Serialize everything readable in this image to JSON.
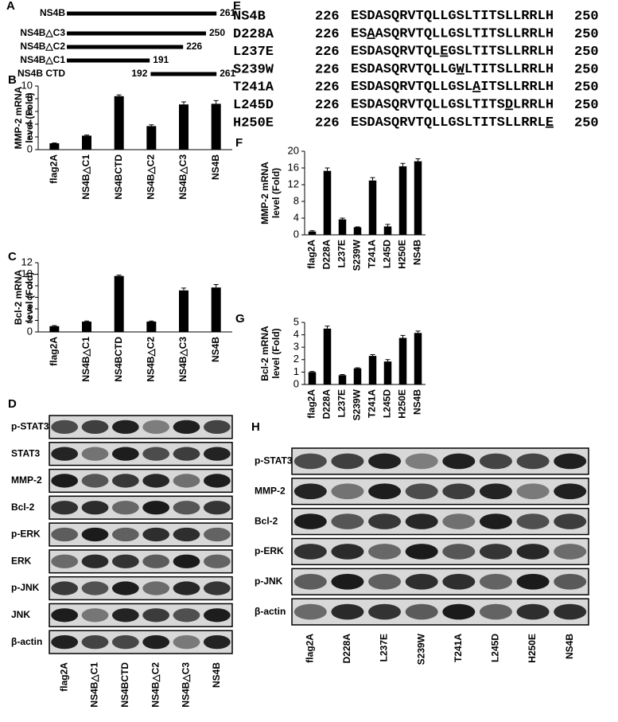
{
  "panel_a": {
    "letter": "A",
    "constructs": [
      {
        "name": "NS4B",
        "end": 261
      },
      {
        "name": "NS4B△C3",
        "end": 250
      },
      {
        "name": "NS4B△C2",
        "end": 226
      },
      {
        "name": "NS4B△C1",
        "end": 191
      },
      {
        "name": "NS4B CTD",
        "start": 192,
        "end": 261
      }
    ]
  },
  "panel_e": {
    "letter": "E",
    "rows": [
      {
        "name": "NS4B",
        "start": 226,
        "seq": [
          "ESDASQRVTQLLGSLTITSLLRRLH"
        ],
        "end": 250
      },
      {
        "name": "D228A",
        "start": 226,
        "seq": [
          "ES",
          "A",
          "ASQRVTQLLGSLTITSLLRRLH"
        ],
        "end": 250
      },
      {
        "name": "L237E",
        "start": 226,
        "seq": [
          "ESDASQRVTQL",
          "E",
          "GSLTITSLLRRLH"
        ],
        "end": 250
      },
      {
        "name": "S239W",
        "start": 226,
        "seq": [
          "ESDASQRVTQLLG",
          "W",
          "LTITSLLRRLH"
        ],
        "end": 250
      },
      {
        "name": "T241A",
        "start": 226,
        "seq": [
          "ESDASQRVTQLLGSL",
          "A",
          "ITSLLRRLH"
        ],
        "end": 250
      },
      {
        "name": "L245D",
        "start": 226,
        "seq": [
          "ESDASQRVTQLLGSLTITS",
          "D",
          "LRRLH"
        ],
        "end": 250
      },
      {
        "name": "H250E",
        "start": 226,
        "seq": [
          "ESDASQRVTQLLGSLTITSLLRRL",
          "E"
        ],
        "end": 250
      }
    ]
  },
  "chart_data": [
    {
      "type": "bar",
      "panel": "B",
      "ylabel": [
        "MMP-2 mRNA",
        "level (Fold)"
      ],
      "categories": [
        "flag2A",
        "NS4B△C1",
        "NS4BCTD",
        "NS4B△C2",
        "NS4B△C3",
        "NS4B"
      ],
      "values": [
        1,
        2.2,
        8.4,
        3.7,
        7.1,
        7.2
      ],
      "errors": [
        0.05,
        0.1,
        0.2,
        0.2,
        0.4,
        0.5
      ],
      "ylim": [
        0,
        10
      ],
      "yticks": [
        0,
        2,
        4,
        6,
        8,
        10
      ],
      "color": "#000000"
    },
    {
      "type": "bar",
      "panel": "C",
      "ylabel": [
        "Bcl-2 mRNA",
        "level (Fold)"
      ],
      "categories": [
        "flag2A",
        "NS4B△C1",
        "NS4BCTD",
        "NS4B△C2",
        "NS4B△C3",
        "NS4B"
      ],
      "values": [
        1,
        1.8,
        9.7,
        1.8,
        7.2,
        7.7
      ],
      "errors": [
        0.1,
        0.1,
        0.15,
        0.1,
        0.4,
        0.5
      ],
      "ylim": [
        0,
        12
      ],
      "yticks": [
        0,
        2,
        4,
        6,
        8,
        10,
        12
      ],
      "color": "#000000"
    },
    {
      "type": "bar",
      "panel": "F",
      "ylabel": [
        "MMP-2 mRNA",
        "level (Fold)"
      ],
      "categories": [
        "flag2A",
        "D228A",
        "L237E",
        "S239W",
        "T241A",
        "L245D",
        "H250E",
        "NS4B"
      ],
      "values": [
        0.8,
        15.3,
        3.7,
        1.8,
        13,
        2,
        16.4,
        17.6
      ],
      "errors": [
        0.2,
        0.7,
        0.3,
        0.1,
        0.7,
        0.5,
        0.7,
        0.6
      ],
      "ylim": [
        0,
        20
      ],
      "yticks": [
        0,
        4,
        8,
        12,
        16,
        20
      ],
      "color": "#000000"
    },
    {
      "type": "bar",
      "panel": "G",
      "ylabel": [
        "Bcl-2 mRNA",
        "level (Fold)"
      ],
      "categories": [
        "flag2A",
        "D228A",
        "L237E",
        "S239W",
        "T241A",
        "L245D",
        "H250E",
        "NS4B"
      ],
      "values": [
        1,
        4.5,
        0.75,
        1.3,
        2.3,
        1.85,
        3.75,
        4.15
      ],
      "errors": [
        0.05,
        0.2,
        0.05,
        0.05,
        0.1,
        0.15,
        0.2,
        0.15
      ],
      "ylim": [
        0,
        5
      ],
      "yticks": [
        0,
        1,
        2,
        3,
        4,
        5
      ],
      "color": "#000000"
    }
  ],
  "blots": [
    {
      "letter": "D",
      "rows": [
        "p-STAT3",
        "STAT3",
        "MMP-2",
        "Bcl-2",
        "p-ERK",
        "ERK",
        "p-JNK",
        "JNK",
        "β-actin"
      ],
      "lanes": [
        "flag2A",
        "NS4B△C1",
        "NS4BCTD",
        "NS4B△C2",
        "NS4B△C3",
        "NS4B"
      ]
    },
    {
      "letter": "H",
      "rows": [
        "p-STAT3",
        "MMP-2",
        "Bcl-2",
        "p-ERK",
        "p-JNK",
        "β-actin"
      ],
      "lanes": [
        "flag2A",
        "D228A",
        "L237E",
        "S239W",
        "T241A",
        "L245D",
        "H250E",
        "NS4B"
      ]
    }
  ]
}
